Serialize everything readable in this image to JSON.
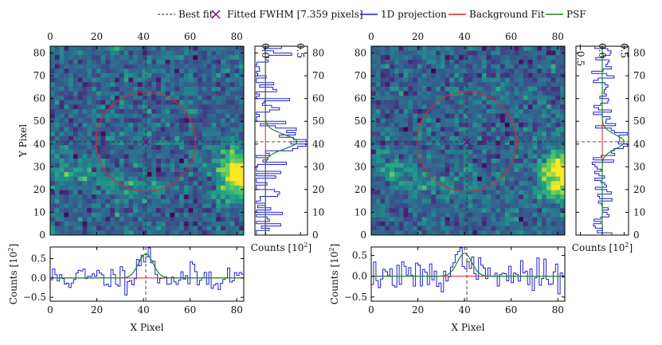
{
  "legend": {
    "items": [
      {
        "label": "Best fit",
        "kind": "dashed-line",
        "color": "#555555"
      },
      {
        "label": "Fitted FWHM [7.359 pixels]",
        "kind": "x-marker",
        "color": "#800080"
      },
      {
        "label": "1D projection",
        "kind": "line",
        "color": "#1f1fd6"
      },
      {
        "label": "Background Fit",
        "kind": "line",
        "color": "#e02020"
      },
      {
        "label": "PSF",
        "kind": "line",
        "color": "#1a8a1a"
      }
    ]
  },
  "colors": {
    "projection": "#1f1fd6",
    "background": "#e02020",
    "psf": "#1a8a1a",
    "bestfit": "#555555",
    "marker": "#800080",
    "ring": "#d03030"
  },
  "chart_data": [
    {
      "panel": "left",
      "type": "heatmap",
      "title": "",
      "xlabel": "X Pixel",
      "ylabel": "Y Pixel",
      "xlim": [
        0,
        83
      ],
      "ylim": [
        0,
        83
      ],
      "ticks": [
        0,
        20,
        40,
        60,
        80
      ],
      "best_fit": {
        "x": 41,
        "y": 41
      },
      "fwhm": 7.359,
      "bright_source": {
        "x": 83,
        "y": 27
      },
      "colormap": "viridis",
      "x_projection": {
        "type": "line",
        "ylabel": "Counts [10^2]",
        "ylabel_parts": [
          "Counts [10",
          "2",
          "]"
        ],
        "ylim": [
          -0.6,
          0.8
        ],
        "yticks": [
          -0.5,
          0.0,
          0.5
        ],
        "ytick_labels": [
          "−0.5",
          "0.0",
          "0.5"
        ],
        "psf_amplitude": 0.62,
        "psf_center": 41,
        "background": 0.0,
        "noise_level": 0.18,
        "seed": 11
      },
      "y_projection": {
        "type": "line",
        "xlabel": "Counts [10^2]",
        "xlabel_parts": [
          "Counts [10",
          "2",
          "]"
        ],
        "xlim": [
          -0.15,
          0.6
        ],
        "xticks": [
          0.0,
          0.5
        ],
        "xtick_labels": [
          "0.0",
          "0.5"
        ],
        "psf_amplitude": 0.45,
        "psf_center": 41,
        "background": 0.0,
        "noise_level": 0.15,
        "seed": 23
      }
    },
    {
      "panel": "right",
      "type": "heatmap",
      "title": "",
      "xlabel": "X Pixel",
      "ylabel": "",
      "xlim": [
        0,
        83
      ],
      "ylim": [
        0,
        83
      ],
      "ticks": [
        0,
        20,
        40,
        60,
        80
      ],
      "best_fit": {
        "x": 41,
        "y": 41
      },
      "fwhm": 7.359,
      "bright_source": {
        "x": 83,
        "y": 27
      },
      "colormap": "viridis",
      "x_projection": {
        "type": "line",
        "ylabel": "Counts [10^2]",
        "ylabel_parts": [
          "Counts [10",
          "2",
          "]"
        ],
        "ylim": [
          -0.6,
          0.7
        ],
        "yticks": [
          -0.5,
          0.0,
          0.5
        ],
        "ytick_labels": [
          "−0.5",
          "0.0",
          "0.5"
        ],
        "psf_amplitude": 0.55,
        "psf_center": 40,
        "background": 0.0,
        "noise_level": 0.18,
        "seed": 37
      },
      "y_projection": {
        "type": "line",
        "xlabel": "Counts [10^2]",
        "xlabel_parts": [
          "Counts [10",
          "2",
          "]"
        ],
        "xlim": [
          -0.6,
          0.6
        ],
        "xticks": [
          -0.5,
          0.0,
          0.5
        ],
        "xtick_labels": [
          "−0.5",
          "0.0",
          "0.5"
        ],
        "psf_amplitude": 0.5,
        "psf_center": 41,
        "background": 0.0,
        "noise_level": 0.16,
        "seed": 51
      }
    }
  ]
}
